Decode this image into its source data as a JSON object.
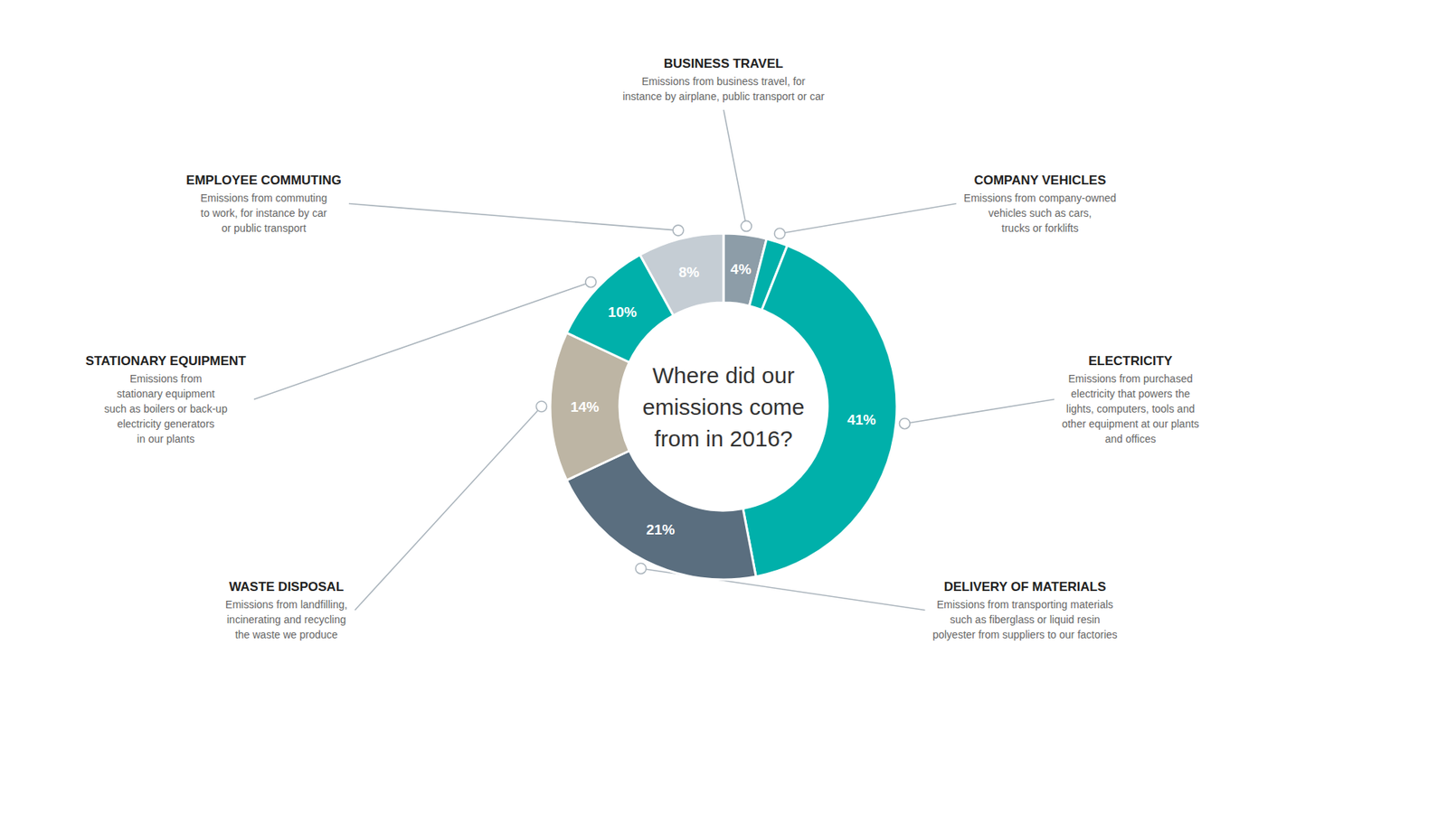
{
  "chart_data": {
    "type": "pie",
    "title": "Where did our\nemissions come\nfrom in 2016?",
    "categories": [
      "BUSINESS TRAVEL",
      "COMPANY VEHICLES",
      "ELECTRICITY",
      "DELIVERY OF MATERIALS",
      "WASTE DISPOSAL",
      "STATIONARY EQUIPMENT",
      "EMPLOYEE COMMUTING"
    ],
    "values": [
      4,
      2,
      41,
      21,
      14,
      10,
      8
    ],
    "value_labels": [
      "4%",
      null,
      "41%",
      "21%",
      "14%",
      "10%",
      "8%"
    ],
    "colors": [
      "#8d9da8",
      "#00b0aa",
      "#00b0aa",
      "#5a6e7f",
      "#bdb5a4",
      "#00b0aa",
      "#c5cdd4"
    ],
    "annotations": [
      "Emissions from business travel, for\ninstance by airplane, public transport or car",
      "Emissions from company-owned\nvehicles such as cars,\ntrucks or forklifts",
      "Emissions from purchased\nelectricity that powers the\nlights, computers, tools and\nother equipment at our plants\nand offices",
      "Emissions from transporting materials\nsuch as fiberglass or liquid resin\npolyester from suppliers to our factories",
      "Emissions from landfilling,\nincinerating and recycling\nthe waste we produce",
      "Emissions from\nstationary equipment\nsuch as boilers or back-up\nelectricity generators\nin our plants",
      "Emissions from commuting\nto work, for instance by car\nor public transport"
    ],
    "data_labels": true
  }
}
